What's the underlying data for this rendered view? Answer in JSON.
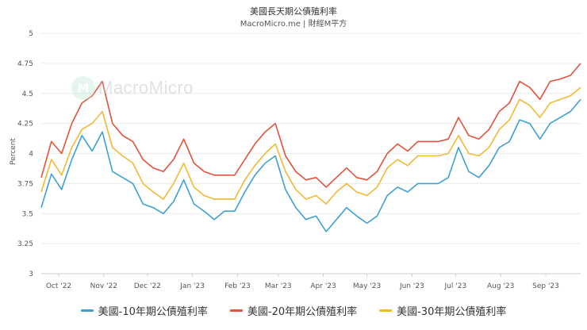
{
  "chart_data": {
    "type": "line",
    "title": "美國長天期公債殖利率",
    "subtitle": "MacroMicro.me | 財經M平方",
    "ylabel": "Percent",
    "xlabel": "",
    "ylim": [
      3,
      5
    ],
    "yticks": [
      "3",
      "3.25",
      "3.5",
      "3.75",
      "4",
      "4.25",
      "4.5",
      "4.75",
      "5"
    ],
    "xticks": [
      "Oct '22",
      "Nov '22",
      "Dec '22",
      "Jan '23",
      "Feb '23",
      "Mar '23",
      "Apr '23",
      "May '23",
      "Jun '23",
      "Jul '23",
      "Aug '23",
      "Sep '23"
    ],
    "grid": true,
    "legend_position": "bottom",
    "x": [
      "2022-09-19",
      "2022-09-26",
      "2022-10-03",
      "2022-10-10",
      "2022-10-17",
      "2022-10-24",
      "2022-10-31",
      "2022-11-07",
      "2022-11-14",
      "2022-11-21",
      "2022-11-28",
      "2022-12-05",
      "2022-12-12",
      "2022-12-19",
      "2022-12-26",
      "2023-01-02",
      "2023-01-09",
      "2023-01-16",
      "2023-01-23",
      "2023-01-30",
      "2023-02-06",
      "2023-02-13",
      "2023-02-20",
      "2023-02-27",
      "2023-03-06",
      "2023-03-13",
      "2023-03-20",
      "2023-03-27",
      "2023-04-03",
      "2023-04-10",
      "2023-04-17",
      "2023-04-24",
      "2023-05-01",
      "2023-05-08",
      "2023-05-15",
      "2023-05-22",
      "2023-05-29",
      "2023-06-05",
      "2023-06-12",
      "2023-06-19",
      "2023-06-26",
      "2023-07-03",
      "2023-07-10",
      "2023-07-17",
      "2023-07-24",
      "2023-07-31",
      "2023-08-07",
      "2023-08-14",
      "2023-08-21",
      "2023-08-28",
      "2023-09-04",
      "2023-09-11",
      "2023-09-18",
      "2023-09-25"
    ],
    "series": [
      {
        "name": "美國-10年期公債殖利率",
        "color": "#3ea1d2",
        "values": [
          3.55,
          3.83,
          3.7,
          3.95,
          4.15,
          4.02,
          4.18,
          3.85,
          3.8,
          3.75,
          3.58,
          3.55,
          3.5,
          3.6,
          3.78,
          3.58,
          3.52,
          3.45,
          3.52,
          3.52,
          3.68,
          3.82,
          3.92,
          3.98,
          3.7,
          3.55,
          3.45,
          3.48,
          3.35,
          3.45,
          3.55,
          3.48,
          3.42,
          3.48,
          3.65,
          3.72,
          3.68,
          3.75,
          3.75,
          3.75,
          3.8,
          4.05,
          3.85,
          3.8,
          3.9,
          4.05,
          4.1,
          4.28,
          4.25,
          4.12,
          4.25,
          4.3,
          4.35,
          4.45
        ]
      },
      {
        "name": "美國-20年期公債殖利率",
        "color": "#e0533c",
        "values": [
          3.8,
          4.1,
          4.0,
          4.25,
          4.42,
          4.48,
          4.6,
          4.25,
          4.15,
          4.1,
          3.95,
          3.88,
          3.85,
          3.95,
          4.12,
          3.92,
          3.85,
          3.82,
          3.82,
          3.82,
          3.95,
          4.08,
          4.18,
          4.25,
          3.98,
          3.85,
          3.78,
          3.8,
          3.72,
          3.8,
          3.88,
          3.8,
          3.78,
          3.85,
          4.0,
          4.08,
          4.02,
          4.1,
          4.1,
          4.1,
          4.12,
          4.3,
          4.15,
          4.12,
          4.2,
          4.35,
          4.42,
          4.6,
          4.55,
          4.45,
          4.6,
          4.62,
          4.65,
          4.75
        ]
      },
      {
        "name": "美國-30年期公債殖利率",
        "color": "#f1b937",
        "values": [
          3.68,
          3.95,
          3.82,
          4.05,
          4.2,
          4.25,
          4.35,
          4.05,
          3.98,
          3.92,
          3.75,
          3.68,
          3.62,
          3.75,
          3.92,
          3.72,
          3.65,
          3.62,
          3.62,
          3.62,
          3.78,
          3.9,
          4.0,
          4.08,
          3.85,
          3.7,
          3.62,
          3.65,
          3.58,
          3.68,
          3.75,
          3.68,
          3.65,
          3.72,
          3.88,
          3.95,
          3.9,
          3.98,
          3.98,
          3.98,
          4.0,
          4.15,
          4.0,
          3.98,
          4.05,
          4.2,
          4.28,
          4.45,
          4.4,
          4.3,
          4.42,
          4.45,
          4.48,
          4.55
        ]
      }
    ]
  },
  "watermark": {
    "text": "MacroMicro",
    "icon": "macromicro-logo-icon"
  }
}
